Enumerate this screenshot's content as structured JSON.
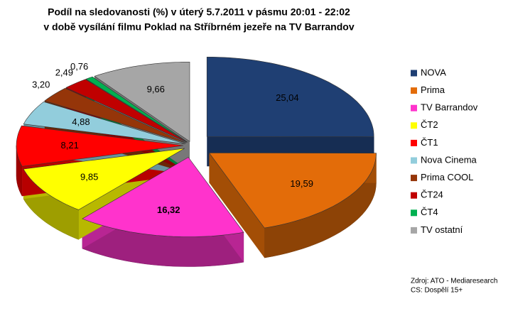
{
  "chart_data": {
    "type": "pie",
    "title": "Podíl na sledovanosti (%) v úterý 5.7.2011 v pásmu 20:01 - 22:02",
    "subtitle": "v době vysílání filmu Poklad na Stříbrném jezeře na TV Barrandov",
    "categories": [
      "NOVA",
      "Prima",
      "TV Barrandov",
      "ČT2",
      "ČT1",
      "Nova Cinema",
      "Prima COOL",
      "ČT24",
      "ČT4",
      "TV ostatní"
    ],
    "values": [
      25.04,
      19.59,
      16.32,
      9.85,
      8.21,
      4.88,
      3.2,
      2.49,
      0.76,
      9.66
    ],
    "value_labels": [
      "25,04",
      "19,59",
      "16,32",
      "9,85",
      "8,21",
      "4,88",
      "3,20",
      "2,49",
      "0,76",
      "9,66"
    ],
    "colors": [
      "#1f3f73",
      "#e36c09",
      "#ff33cc",
      "#ffff00",
      "#ff0000",
      "#92cddc",
      "#953509",
      "#c00000",
      "#00b050",
      "#a6a6a6"
    ],
    "legend": "right",
    "notes": [
      "Zdroj: ATO - Mediaresearch",
      "CS: Dospělí 15+"
    ]
  }
}
